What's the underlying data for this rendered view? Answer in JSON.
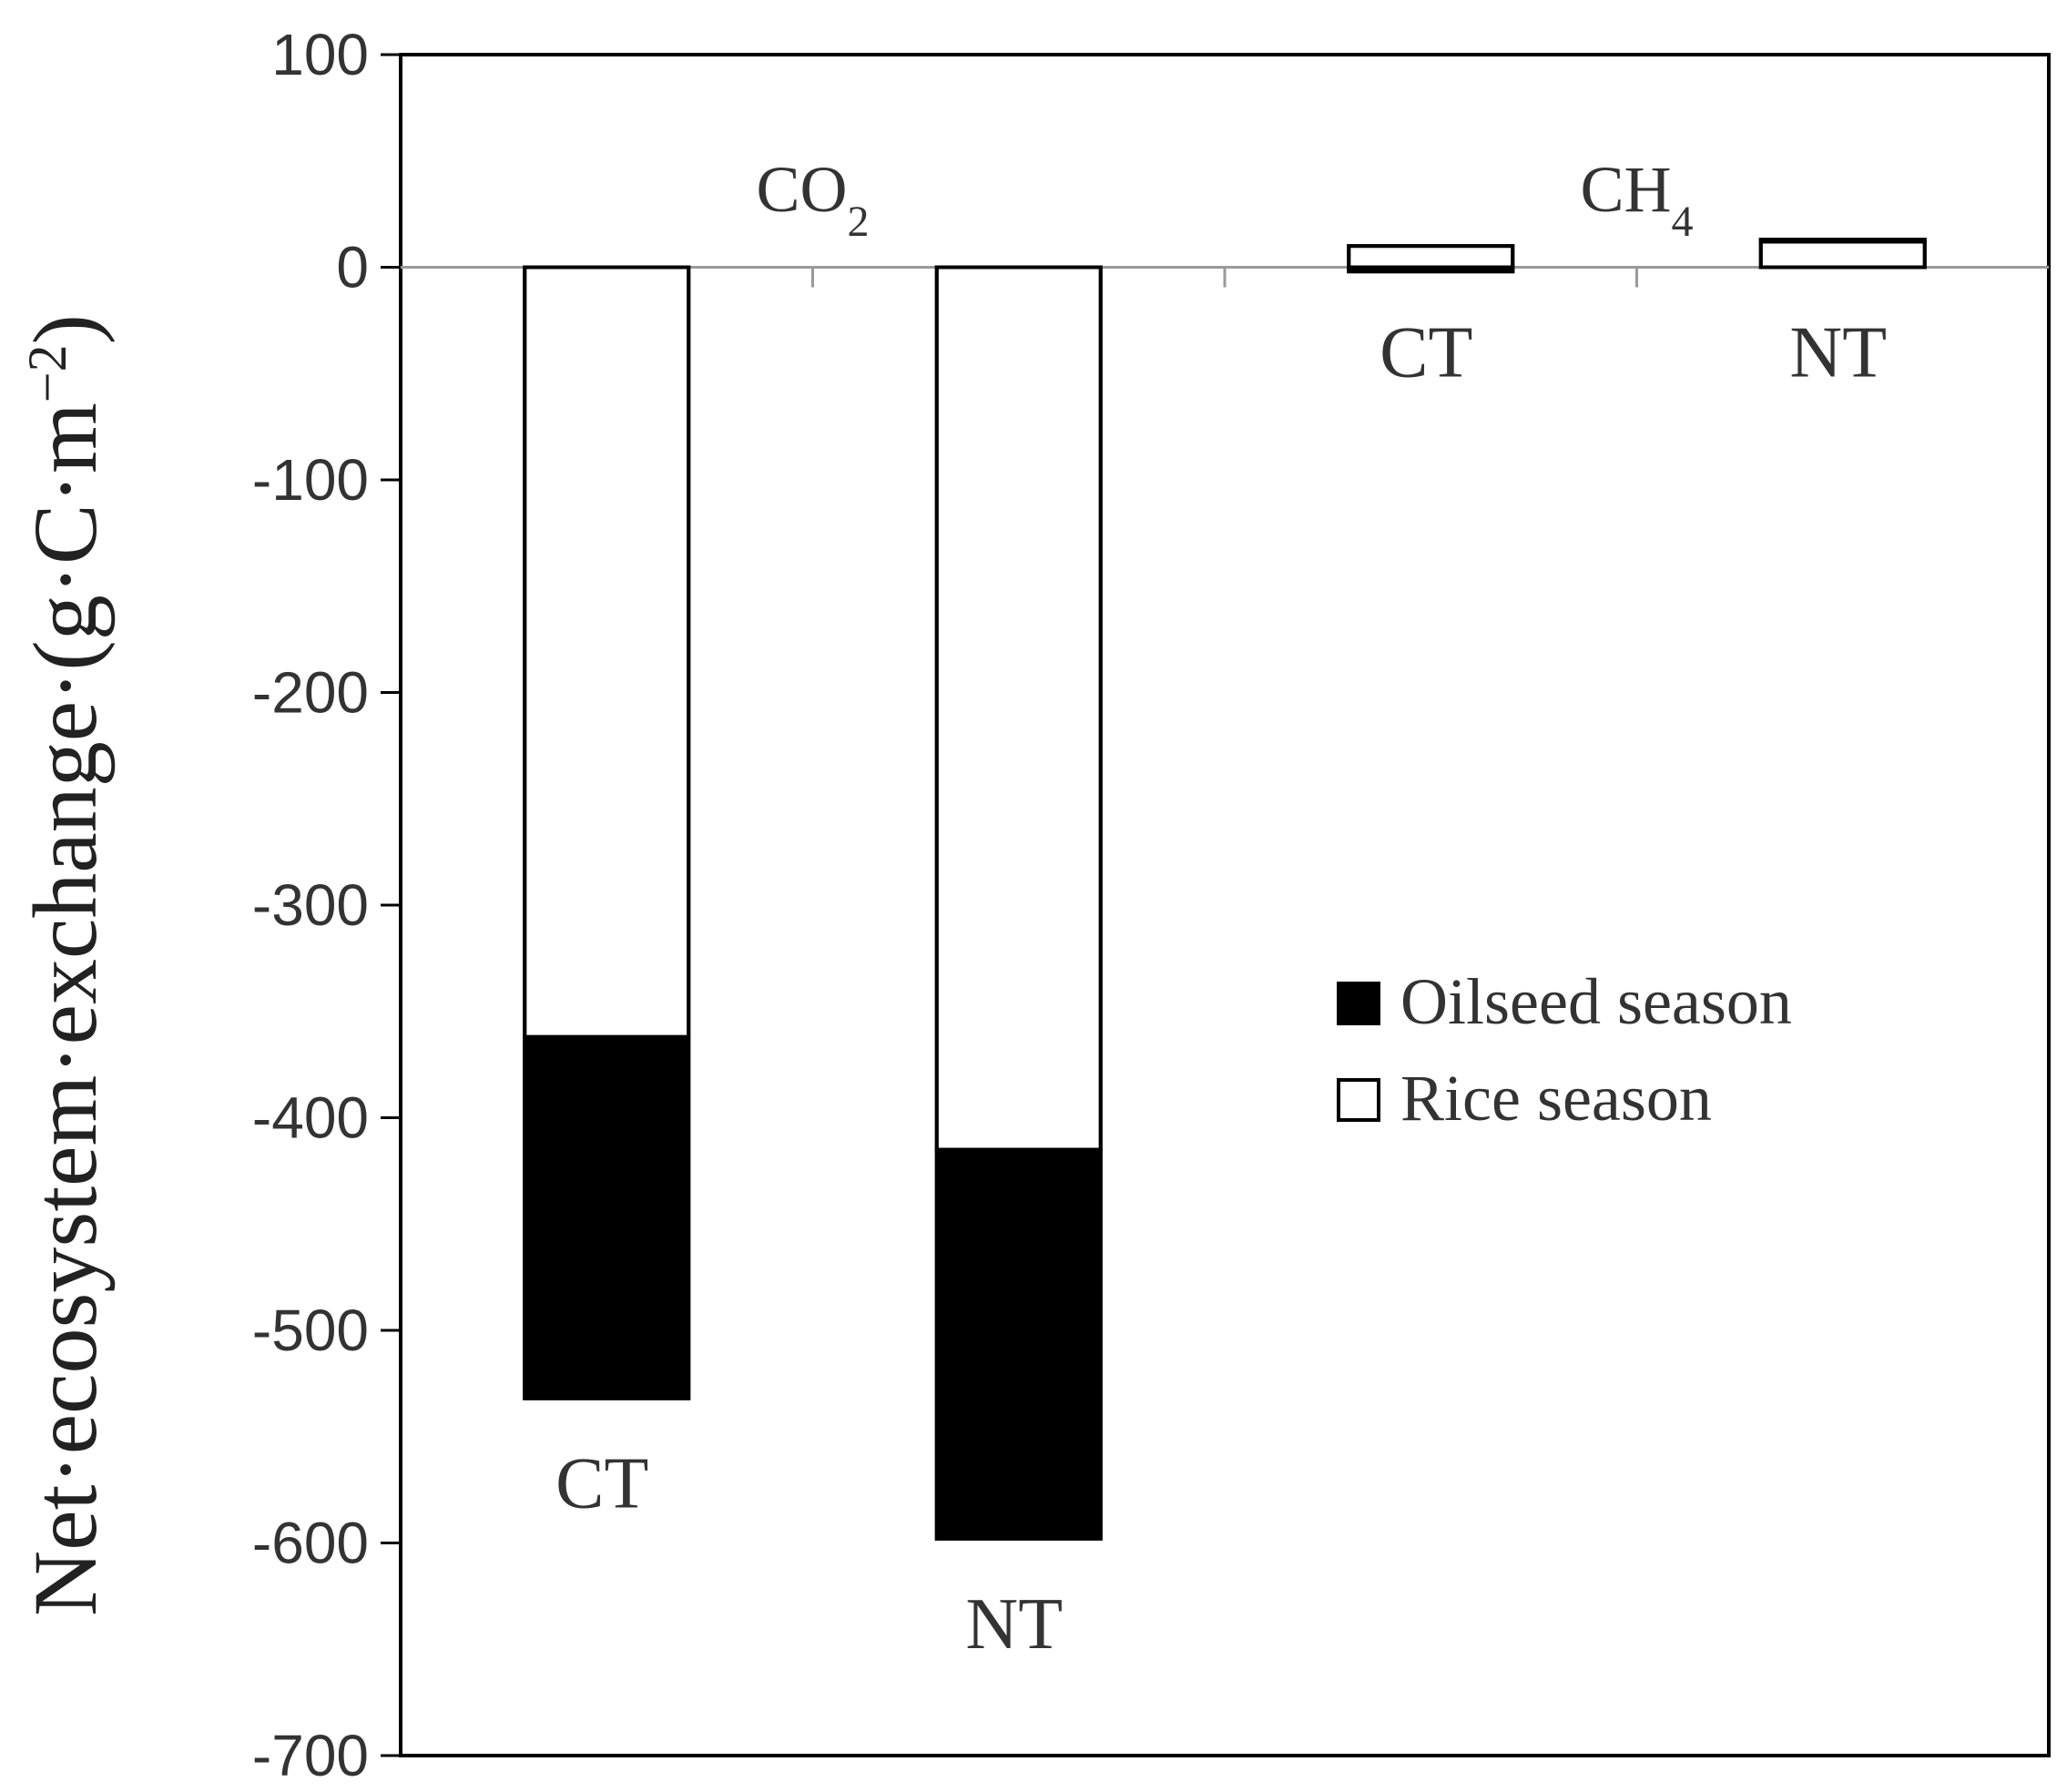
{
  "chart_data": {
    "type": "bar",
    "stacked": true,
    "title": "",
    "xlabel": "",
    "ylabel": {
      "main": "Net·ecosystem·exchange·(g·C",
      "sep": "·",
      "unit": "m",
      "exponent": "−2",
      "close": ")"
    },
    "ylim": [
      -700,
      100
    ],
    "yticks": [
      "100",
      "0",
      "-100",
      "-200",
      "-300",
      "-400",
      "-500",
      "-600",
      "-700"
    ],
    "ytick_values": [
      100,
      0,
      -100,
      -200,
      -300,
      -400,
      -500,
      -600,
      -700
    ],
    "grid": false,
    "groups": [
      {
        "label": "CO",
        "subscript": "2",
        "categories": [
          "CT",
          "NT"
        ]
      },
      {
        "label": "CH",
        "subscript": "4",
        "categories": [
          "CT",
          "NT"
        ]
      }
    ],
    "categories": [
      "CT",
      "NT",
      "CT",
      "NT"
    ],
    "series": [
      {
        "name": "Rice season",
        "color": "#ffffff",
        "values": [
          -362,
          -415,
          10,
          12
        ]
      },
      {
        "name": "Oilseed season",
        "color": "#000000",
        "values": [
          -170,
          -183,
          -2,
          1
        ]
      }
    ],
    "legend": {
      "position": "center-right",
      "entries": [
        "Oilseed season",
        "Rice season"
      ]
    }
  }
}
